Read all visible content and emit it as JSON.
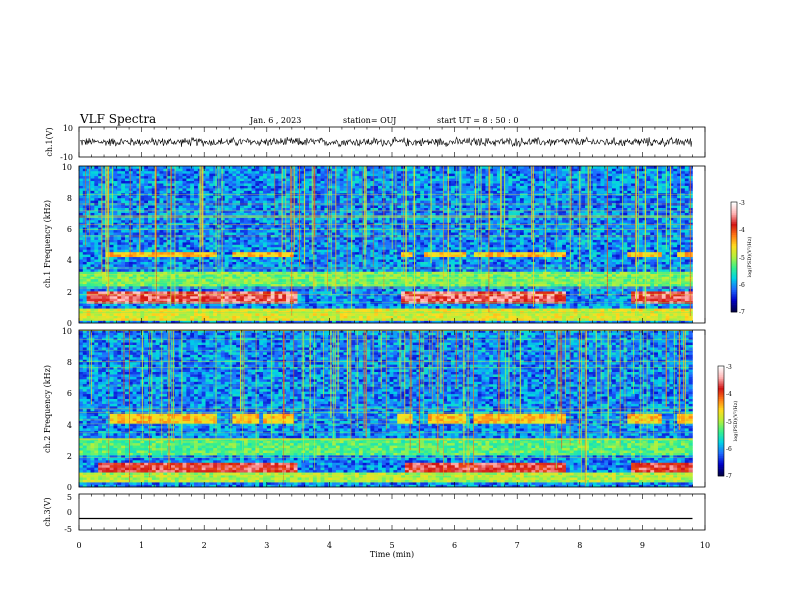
{
  "header": {
    "title": "VLF Spectra",
    "date": "Jan. 6 , 2023",
    "station": "station= OUJ",
    "start": "start UT = 8 : 50 : 0"
  },
  "colors": {
    "colormap": [
      "#00004a",
      "#0000c8",
      "#1e6bff",
      "#00d2e6",
      "#37f08c",
      "#b4f03c",
      "#ffdc1e",
      "#ff7814",
      "#d21414",
      "#ffb4b4",
      "#ffffff"
    ],
    "trace": "#000000",
    "axes": "#000000"
  },
  "chart_data": [
    {
      "id": "ch1-waveform",
      "type": "line",
      "ylabel": "ch.1(V)",
      "ylim": [
        -10,
        10
      ],
      "yticks": [
        "10",
        "-10"
      ],
      "xlim": [
        0,
        10
      ],
      "description_values": {
        "baseline": 0,
        "typical_amplitude": 2.5
      }
    },
    {
      "id": "ch1-spectrogram",
      "type": "heatmap",
      "ylabel": "ch.1 Frequency (kHz)",
      "ylim": [
        0,
        10
      ],
      "yticks": [
        "0",
        "2",
        "4",
        "6",
        "8",
        "10"
      ],
      "xlim": [
        0,
        10
      ],
      "data_end_min": 9.8,
      "colorbar": {
        "label": "log(PSD)(V²/Hz)",
        "range": [
          -7,
          -3
        ],
        "ticks": [
          "-3",
          "-4",
          "-5",
          "-6",
          "-7"
        ]
      },
      "bands": [
        {
          "from_khz": 4.25,
          "to_khz": 4.6,
          "level": 0.62,
          "segments": [
            [
              0.4,
              2.2
            ],
            [
              2.45,
              2.85
            ],
            [
              2.9,
              3.4
            ],
            [
              5.15,
              5.35
            ],
            [
              5.5,
              6.2
            ],
            [
              6.3,
              7.8
            ],
            [
              8.75,
              9.3
            ],
            [
              9.55,
              9.8
            ]
          ]
        },
        {
          "from_khz": 1.3,
          "to_khz": 2.0,
          "level": 0.85,
          "segments": [
            [
              0.1,
              3.5
            ],
            [
              5.15,
              7.8
            ],
            [
              8.8,
              9.8
            ]
          ]
        },
        {
          "from_khz": 2.3,
          "to_khz": 3.3,
          "level": 0.45,
          "segments": [
            [
              0.0,
              9.8
            ]
          ]
        },
        {
          "from_khz": 0.2,
          "to_khz": 0.9,
          "level": 0.55,
          "segments": [
            [
              0.0,
              9.8
            ]
          ]
        }
      ]
    },
    {
      "id": "ch2-spectrogram",
      "type": "heatmap",
      "ylabel": "ch.2 Frequency (kHz)",
      "ylim": [
        0,
        10
      ],
      "yticks": [
        "0",
        "2",
        "4",
        "6",
        "8",
        "10"
      ],
      "xlim": [
        0,
        10
      ],
      "data_end_min": 9.8,
      "colorbar": {
        "label": "log(PSD)(V²/Hz)",
        "range": [
          -7,
          -3
        ],
        "ticks": [
          "-3",
          "-4",
          "-5",
          "-6",
          "-7"
        ]
      },
      "bands": [
        {
          "from_khz": 4.1,
          "to_khz": 4.7,
          "level": 0.62,
          "segments": [
            [
              0.5,
              2.2
            ],
            [
              2.45,
              2.85
            ],
            [
              2.95,
              3.4
            ],
            [
              5.1,
              5.35
            ],
            [
              5.6,
              6.2
            ],
            [
              6.3,
              7.8
            ],
            [
              8.75,
              9.3
            ],
            [
              9.55,
              9.8
            ]
          ]
        },
        {
          "from_khz": 1.0,
          "to_khz": 1.6,
          "level": 0.82,
          "segments": [
            [
              0.3,
              3.5
            ],
            [
              5.2,
              7.8
            ],
            [
              8.8,
              9.8
            ]
          ]
        },
        {
          "from_khz": 2.0,
          "to_khz": 3.2,
          "level": 0.42,
          "segments": [
            [
              0.0,
              9.8
            ]
          ]
        },
        {
          "from_khz": 0.3,
          "to_khz": 0.9,
          "level": 0.5,
          "segments": [
            [
              0.0,
              9.8
            ]
          ]
        }
      ]
    },
    {
      "id": "ch3-waveform",
      "type": "line",
      "ylabel": "ch.3(V)",
      "ylim": [
        -5,
        5
      ],
      "yticks": [
        "5",
        "0",
        "-5"
      ],
      "xlim": [
        0,
        10
      ],
      "x": [
        0,
        9.8
      ],
      "y": [
        -1.8,
        -1.8
      ]
    }
  ],
  "xaxis": {
    "label": "Time (min)",
    "ticks": [
      "0",
      "1",
      "2",
      "3",
      "4",
      "5",
      "6",
      "7",
      "8",
      "9",
      "10"
    ]
  }
}
